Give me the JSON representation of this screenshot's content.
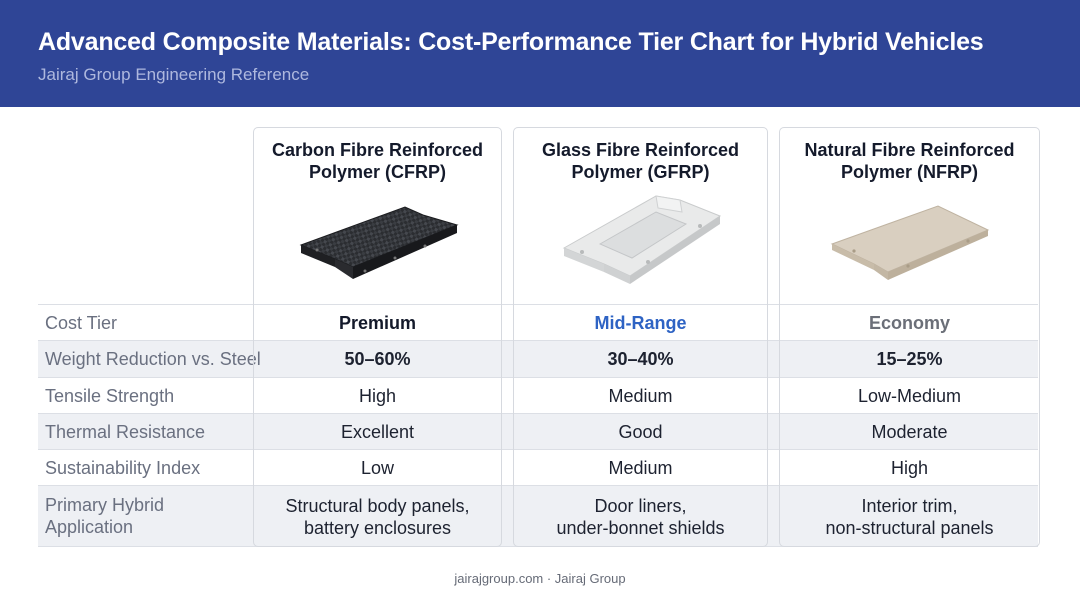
{
  "header": {
    "title": "Advanced Composite Materials: Cost-Performance Tier Chart for Hybrid Vehicles",
    "subtitle": "Jairaj Group Engineering Reference"
  },
  "row_labels": [
    "Cost Tier",
    "Weight Reduction vs. Steel",
    "Tensile Strength",
    "Thermal Resistance",
    "Sustainability Index",
    "Primary Hybrid",
    "Application"
  ],
  "materials": [
    {
      "title_line1": "Carbon Fibre Reinforced",
      "title_line2": "Polymer (CFRP)",
      "image": "carbon-fibre-panel",
      "cost_tier": "Premium",
      "cost_tier_color": "#141a2b",
      "weight_reduction": "50–60%",
      "tensile_strength": "High",
      "thermal_resistance": "Excellent",
      "sustainability": "Low",
      "application_line1": "Structural body panels,",
      "application_line2": "battery enclosures"
    },
    {
      "title_line1": "Glass Fibre Reinforced",
      "title_line2": "Polymer (GFRP)",
      "image": "glass-fibre-panel",
      "cost_tier": "Mid-Range",
      "cost_tier_color": "#2e63c4",
      "weight_reduction": "30–40%",
      "tensile_strength": "Medium",
      "thermal_resistance": "Good",
      "sustainability": "Medium",
      "application_line1": "Door liners,",
      "application_line2": "under-bonnet shields"
    },
    {
      "title_line1": "Natural Fibre Reinforced",
      "title_line2": "Polymer (NFRP)",
      "image": "natural-fibre-panel",
      "cost_tier": "Economy",
      "cost_tier_color": "#6b6f78",
      "weight_reduction": "15–25%",
      "tensile_strength": "Low-Medium",
      "thermal_resistance": "Moderate",
      "sustainability": "High",
      "application_line1": "Interior trim,",
      "application_line2": "non-structural panels"
    }
  ],
  "footer": "jairajgroup.com · Jairaj Group",
  "colors": {
    "header_bg": "#2f4596",
    "subtitle": "#aeb8de",
    "row_shade": "#eef0f4"
  }
}
